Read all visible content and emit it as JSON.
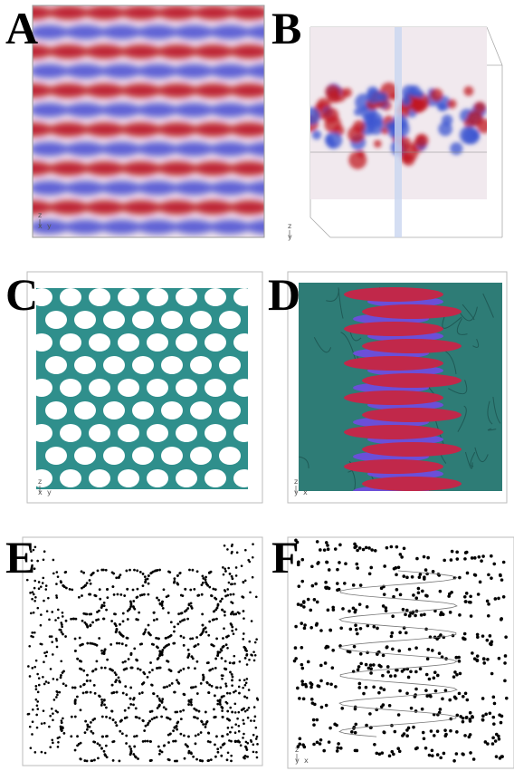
{
  "panels": [
    {
      "label": "A",
      "axes": [
        "z",
        "x",
        "y"
      ]
    },
    {
      "label": "B",
      "axes": [
        "z",
        "y"
      ]
    },
    {
      "label": "C",
      "axes": [
        "z",
        "x",
        "y"
      ]
    },
    {
      "label": "D",
      "axes": [
        "z",
        "y",
        "x"
      ]
    },
    {
      "label": "E"
    },
    {
      "label": "F",
      "axes": [
        "z",
        "y",
        "x"
      ]
    }
  ]
}
